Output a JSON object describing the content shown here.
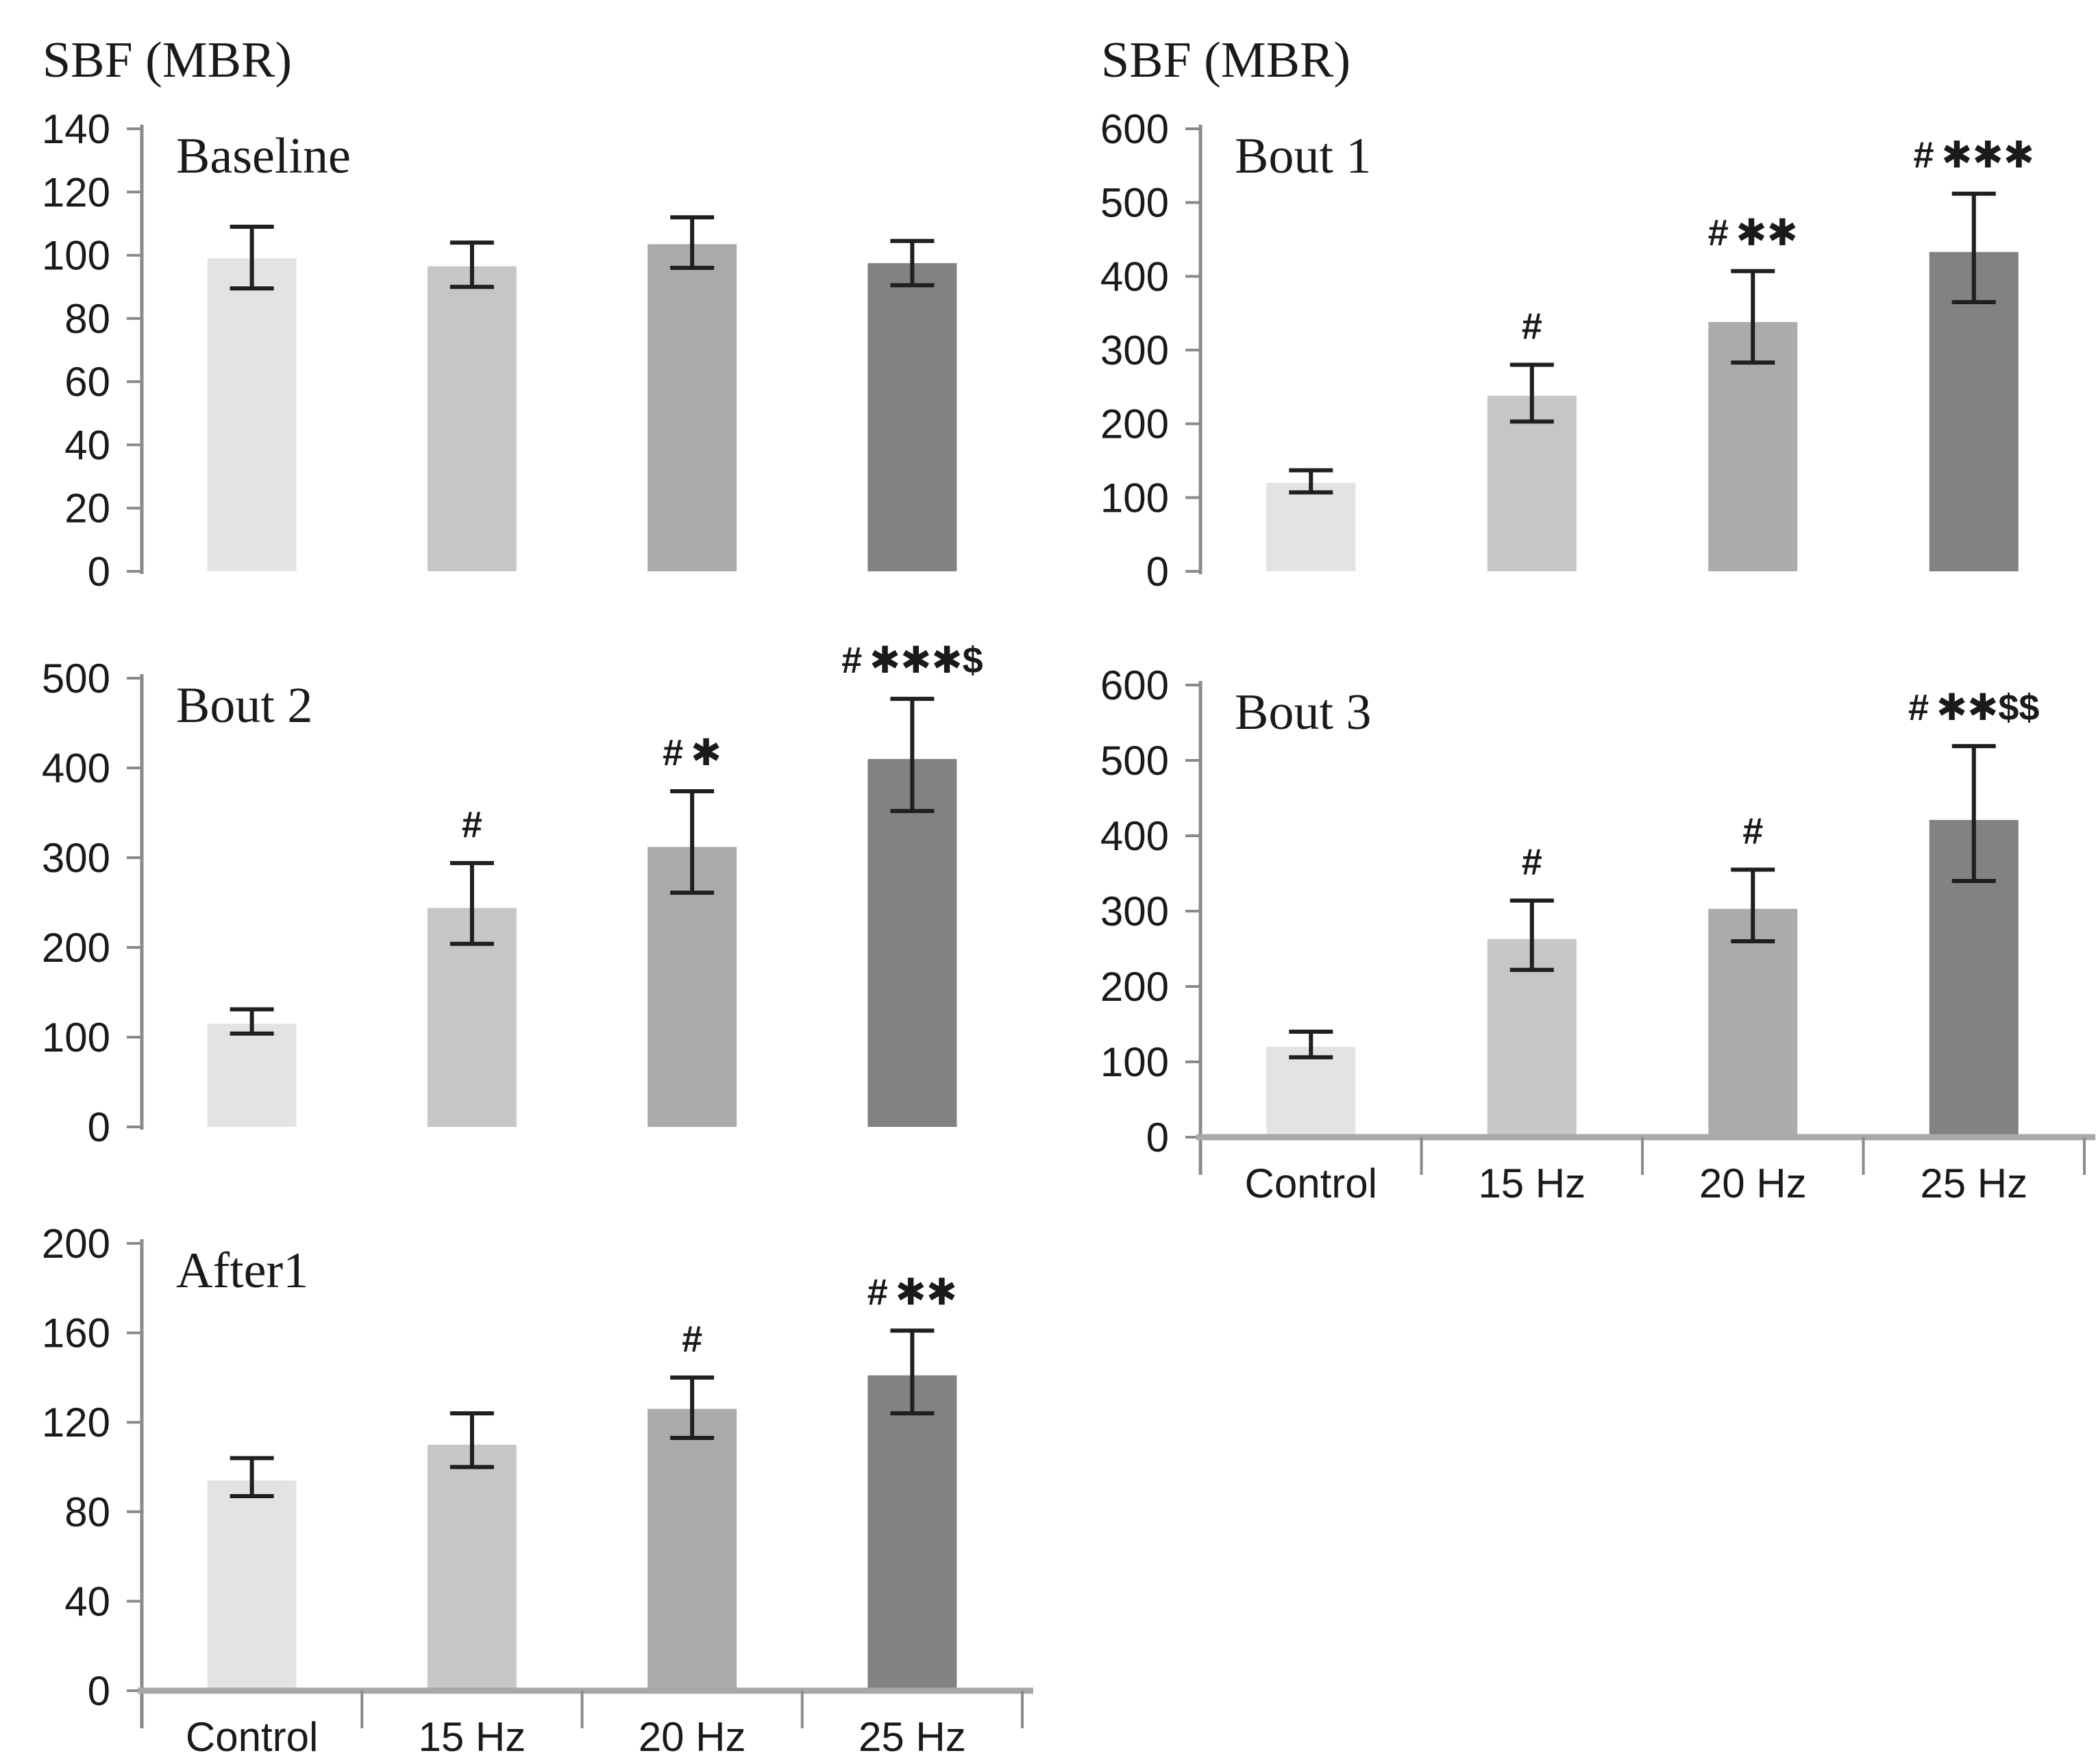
{
  "figure": {
    "background": "#ffffff",
    "text_color": "#1a1a1a",
    "axis_color": "#8a8a8a",
    "x_axis_line_color": "#a8a8a8",
    "error_bar_color": "#1f1f1f",
    "bar_colors": [
      "#e3e3e3",
      "#c6c6c6",
      "#ababab",
      "#828282"
    ],
    "categories": [
      "Control",
      "15 Hz",
      "20 Hz",
      "25 Hz"
    ]
  },
  "chart_data": [
    {
      "type": "bar",
      "title": "Baseline",
      "y_axis_title": "SBF (MBR)",
      "categories": [
        "Control",
        "15 Hz",
        "20 Hz",
        "25 Hz"
      ],
      "values": [
        99,
        96.5,
        103.5,
        97.5
      ],
      "error_low": [
        89.5,
        90,
        96,
        90.5
      ],
      "error_high": [
        109,
        104,
        112,
        104.5
      ],
      "annotations": [
        "",
        "",
        "",
        ""
      ],
      "ylim": [
        0,
        140
      ],
      "ytick_step": 20,
      "show_x_labels": false,
      "grid": false,
      "legend": "none"
    },
    {
      "type": "bar",
      "title": "Bout 1",
      "y_axis_title": "SBF (MBR)",
      "categories": [
        "Control",
        "15 Hz",
        "20 Hz",
        "25 Hz"
      ],
      "values": [
        120,
        238,
        338,
        433
      ],
      "error_low": [
        107,
        203,
        283,
        365
      ],
      "error_high": [
        137,
        280,
        407,
        512
      ],
      "annotations": [
        "",
        "#",
        "#**",
        "#***"
      ],
      "ylim": [
        0,
        600
      ],
      "ytick_step": 100,
      "show_x_labels": false,
      "grid": false,
      "legend": "none"
    },
    {
      "type": "bar",
      "title": "Bout 2",
      "categories": [
        "Control",
        "15 Hz",
        "20 Hz",
        "25 Hz"
      ],
      "values": [
        115,
        244,
        312,
        410
      ],
      "error_low": [
        104,
        204,
        261,
        352
      ],
      "error_high": [
        131,
        294,
        374,
        477
      ],
      "annotations": [
        "",
        "#",
        "#*",
        "#***$"
      ],
      "ylim": [
        0,
        500
      ],
      "ytick_step": 100,
      "show_x_labels": false,
      "grid": false,
      "legend": "none"
    },
    {
      "type": "bar",
      "title": "Bout 3",
      "categories": [
        "Control",
        "15 Hz",
        "20 Hz",
        "25 Hz"
      ],
      "values": [
        120,
        263,
        303,
        421
      ],
      "error_low": [
        106,
        222,
        260,
        340
      ],
      "error_high": [
        140,
        314,
        355,
        519
      ],
      "annotations": [
        "",
        "#",
        "#",
        "#**$$"
      ],
      "ylim": [
        0,
        600
      ],
      "ytick_step": 100,
      "show_x_labels": true,
      "grid": false,
      "legend": "none"
    },
    {
      "type": "bar",
      "title": "After1",
      "categories": [
        "Control",
        "15 Hz",
        "20 Hz",
        "25 Hz"
      ],
      "values": [
        94,
        110,
        126,
        141
      ],
      "error_low": [
        87,
        100,
        113,
        124
      ],
      "error_high": [
        104,
        124,
        140,
        161
      ],
      "annotations": [
        "",
        "",
        "#",
        "#**"
      ],
      "ylim": [
        0,
        200
      ],
      "ytick_step": 40,
      "show_x_labels": true,
      "grid": false,
      "legend": "none"
    }
  ]
}
